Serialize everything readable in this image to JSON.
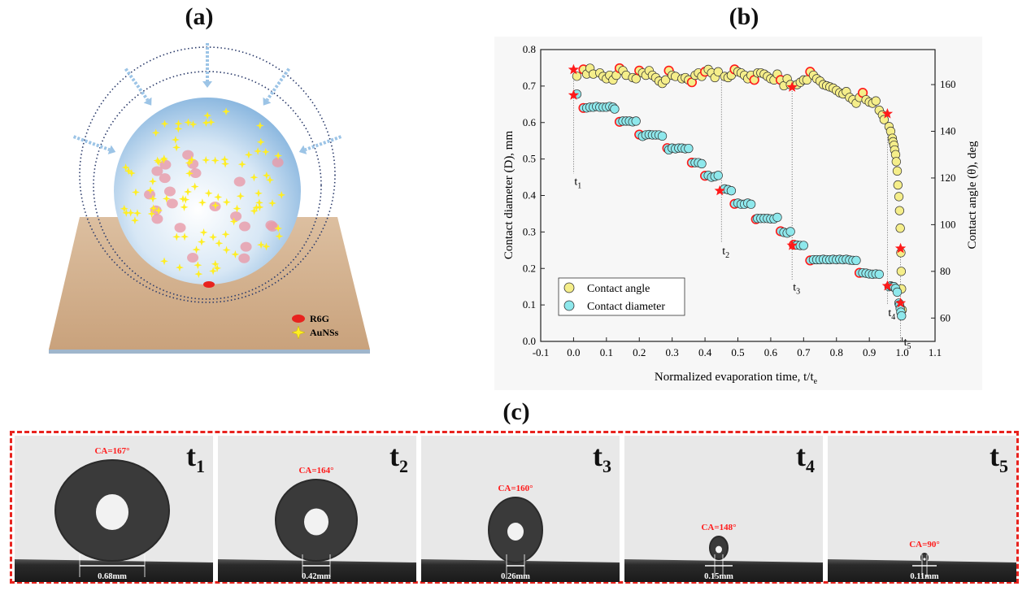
{
  "panels": {
    "a_title": "(a)",
    "b_title": "(b)",
    "c_title": "(c)"
  },
  "panel_a": {
    "legend": [
      {
        "label": "R6G",
        "color": "#e8231e"
      },
      {
        "label": "AuNSs",
        "color": "#ffee22"
      }
    ],
    "colors": {
      "substrate": "#d2b48c",
      "droplet": "#b9d6ee",
      "rings": "#2a3a6a",
      "arrows": "#9cc4e6",
      "r6g": "#e89aa8"
    }
  },
  "chart_data": {
    "type": "scatter",
    "xlabel": "Normalized evaporation time, t/t",
    "xlabel_sub": "e",
    "ylabel": "Contact diameter (D), mm",
    "ylabel_right": "Contact angle (θ), deg",
    "xlim": [
      -0.1,
      1.1
    ],
    "ylim": [
      0.0,
      0.8
    ],
    "ylim_right": [
      50,
      175
    ],
    "xticks": [
      "-0.1",
      "0.0",
      "0.1",
      "0.2",
      "0.3",
      "0.4",
      "0.5",
      "0.6",
      "0.7",
      "0.8",
      "0.9",
      "1.0",
      "1.1"
    ],
    "yticks": [
      "0.0",
      "0.1",
      "0.2",
      "0.3",
      "0.4",
      "0.5",
      "0.6",
      "0.7",
      "0.8"
    ],
    "yticks_right": [
      "60",
      "80",
      "100",
      "120",
      "140",
      "160"
    ],
    "legend_placement": "bottom-left",
    "series": [
      {
        "name": "Contact angle",
        "axis": "right",
        "color": "#f5ee8a",
        "x": [
          0.01,
          0.03,
          0.04,
          0.05,
          0.06,
          0.08,
          0.09,
          0.1,
          0.11,
          0.12,
          0.13,
          0.14,
          0.15,
          0.16,
          0.18,
          0.19,
          0.2,
          0.21,
          0.22,
          0.23,
          0.24,
          0.25,
          0.26,
          0.27,
          0.28,
          0.29,
          0.3,
          0.31,
          0.33,
          0.34,
          0.35,
          0.36,
          0.37,
          0.38,
          0.39,
          0.4,
          0.41,
          0.42,
          0.43,
          0.44,
          0.46,
          0.47,
          0.48,
          0.49,
          0.5,
          0.51,
          0.52,
          0.53,
          0.54,
          0.55,
          0.56,
          0.57,
          0.58,
          0.59,
          0.6,
          0.61,
          0.62,
          0.63,
          0.64,
          0.65,
          0.66,
          0.68,
          0.69,
          0.7,
          0.71,
          0.72,
          0.73,
          0.74,
          0.75,
          0.76,
          0.77,
          0.78,
          0.79,
          0.8,
          0.81,
          0.82,
          0.83,
          0.84,
          0.85,
          0.86,
          0.87,
          0.88,
          0.89,
          0.9,
          0.91,
          0.92,
          0.93,
          0.94,
          0.945,
          0.96,
          0.965,
          0.97,
          0.972,
          0.975,
          0.977,
          0.98,
          0.982,
          0.985,
          0.987,
          0.99,
          0.992,
          0.994,
          0.996,
          0.997,
          0.998,
          1.0
        ],
        "y": [
          163.6,
          166.5,
          164.5,
          167,
          164.5,
          165,
          163.5,
          162.5,
          164,
          162,
          164,
          167,
          166,
          164,
          163,
          162.5,
          166,
          165,
          164,
          166,
          164,
          163,
          161.5,
          160.5,
          162,
          166,
          164,
          163.5,
          162.5,
          163,
          162,
          161,
          164,
          165,
          163.5,
          165.5,
          166.5,
          165,
          163,
          165.5,
          163.5,
          163,
          164,
          166.5,
          165.5,
          165,
          164,
          162.5,
          164,
          162,
          165,
          165,
          164.5,
          163.5,
          162.5,
          162,
          164.5,
          162,
          159.5,
          162.5,
          160,
          160,
          161,
          162,
          162,
          165.5,
          164,
          162.5,
          161.5,
          160,
          159.5,
          159,
          158.5,
          157.5,
          156.5,
          156,
          157,
          154.5,
          153.5,
          152,
          154.5,
          156.5,
          153.5,
          152.5,
          152,
          153,
          149,
          147,
          145,
          142,
          140,
          137,
          135.5,
          134,
          132,
          130,
          127,
          123,
          117,
          112,
          106,
          98.5,
          88,
          80,
          72.5,
          63.5
        ],
        "highlighted_x": [
          0.03,
          0.14,
          0.2,
          0.29,
          0.36,
          0.4,
          0.49,
          0.55,
          0.63,
          0.72,
          0.88
        ]
      },
      {
        "name": "Contact diameter",
        "axis": "left",
        "color": "#8ee8ec",
        "x": [
          0.01,
          0.03,
          0.04,
          0.05,
          0.06,
          0.07,
          0.08,
          0.09,
          0.1,
          0.11,
          0.12,
          0.125,
          0.14,
          0.15,
          0.16,
          0.17,
          0.18,
          0.19,
          0.2,
          0.21,
          0.22,
          0.23,
          0.24,
          0.25,
          0.26,
          0.27,
          0.285,
          0.29,
          0.3,
          0.31,
          0.32,
          0.33,
          0.34,
          0.35,
          0.36,
          0.37,
          0.38,
          0.39,
          0.4,
          0.41,
          0.42,
          0.43,
          0.44,
          0.46,
          0.47,
          0.48,
          0.49,
          0.5,
          0.51,
          0.52,
          0.53,
          0.54,
          0.555,
          0.56,
          0.57,
          0.58,
          0.59,
          0.6,
          0.61,
          0.62,
          0.63,
          0.64,
          0.65,
          0.66,
          0.67,
          0.68,
          0.69,
          0.7,
          0.72,
          0.73,
          0.74,
          0.75,
          0.76,
          0.77,
          0.78,
          0.79,
          0.8,
          0.81,
          0.82,
          0.83,
          0.84,
          0.85,
          0.86,
          0.87,
          0.88,
          0.89,
          0.9,
          0.91,
          0.92,
          0.93,
          0.96,
          0.965,
          0.97,
          0.975,
          0.98,
          0.985,
          0.99,
          0.992,
          0.994,
          0.996,
          0.998
        ],
        "y": [
          0.678,
          0.64,
          0.64,
          0.642,
          0.642,
          0.644,
          0.642,
          0.642,
          0.642,
          0.644,
          0.642,
          0.637,
          0.602,
          0.604,
          0.604,
          0.604,
          0.602,
          0.604,
          0.567,
          0.562,
          0.566,
          0.567,
          0.566,
          0.566,
          0.566,
          0.563,
          0.53,
          0.525,
          0.53,
          0.528,
          0.53,
          0.53,
          0.528,
          0.529,
          0.49,
          0.49,
          0.49,
          0.487,
          0.454,
          0.455,
          0.45,
          0.452,
          0.455,
          0.418,
          0.416,
          0.413,
          0.377,
          0.379,
          0.376,
          0.376,
          0.379,
          0.376,
          0.335,
          0.337,
          0.337,
          0.337,
          0.337,
          0.336,
          0.336,
          0.34,
          0.302,
          0.299,
          0.297,
          0.301,
          0.265,
          0.264,
          0.263,
          0.263,
          0.222,
          0.224,
          0.224,
          0.224,
          0.225,
          0.224,
          0.224,
          0.225,
          0.224,
          0.225,
          0.224,
          0.225,
          0.223,
          0.222,
          0.222,
          0.188,
          0.188,
          0.187,
          0.185,
          0.184,
          0.185,
          0.184,
          0.15,
          0.152,
          0.15,
          0.15,
          0.145,
          0.135,
          0.105,
          0.1,
          0.09,
          0.08,
          0.07
        ],
        "highlighted_x": [
          0.03,
          0.14,
          0.2,
          0.285,
          0.36,
          0.4,
          0.49,
          0.555,
          0.63,
          0.67,
          0.72,
          0.87
        ]
      }
    ],
    "star_markers": {
      "color": "#ff1a1a",
      "angle": [
        {
          "x": 0.0,
          "y": 166.4
        },
        {
          "x": 0.665,
          "y": 158.9
        },
        {
          "x": 0.955,
          "y": 147.5
        },
        {
          "x": 0.995,
          "y": 89.8
        }
      ],
      "diameter": [
        {
          "x": 0.0,
          "y": 0.675
        },
        {
          "x": 0.445,
          "y": 0.413
        },
        {
          "x": 0.665,
          "y": 0.263
        },
        {
          "x": 0.955,
          "y": 0.152
        },
        {
          "x": 0.995,
          "y": 0.105
        }
      ]
    },
    "time_markers": [
      {
        "x": 0.0,
        "label": "t",
        "sub": "1"
      },
      {
        "x": 0.45,
        "label": "t",
        "sub": "2"
      },
      {
        "x": 0.665,
        "label": "t",
        "sub": "3"
      },
      {
        "x": 0.955,
        "label": "t",
        "sub": "4"
      },
      {
        "x": 0.995,
        "label": "t",
        "sub": "5"
      }
    ]
  },
  "panel_c": {
    "border_color": "#e8231e",
    "frames": [
      {
        "label": "t",
        "sub": "1",
        "ca": "CA=167°",
        "diameter": "0.68mm"
      },
      {
        "label": "t",
        "sub": "2",
        "ca": "CA=164°",
        "diameter": "0.42mm"
      },
      {
        "label": "t",
        "sub": "3",
        "ca": "CA=160°",
        "diameter": "0.26mm"
      },
      {
        "label": "t",
        "sub": "4",
        "ca": "CA=148°",
        "diameter": "0.15mm"
      },
      {
        "label": "t",
        "sub": "5",
        "ca": "CA=90°",
        "diameter": "0.11mm"
      }
    ]
  }
}
